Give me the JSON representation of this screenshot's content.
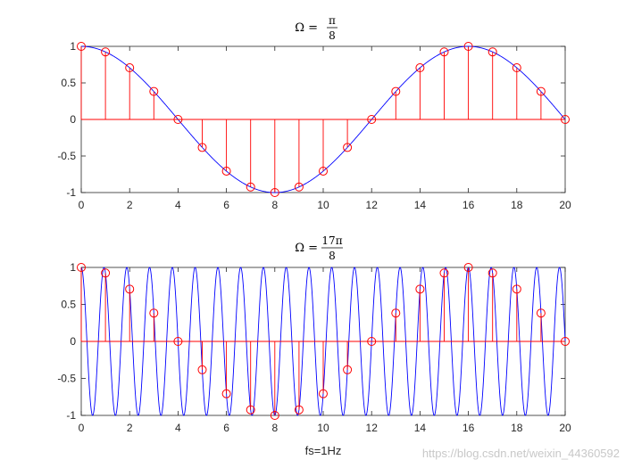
{
  "chart_data": [
    {
      "type": "line",
      "title": {
        "lhs": "Ω =",
        "num": "π",
        "den": "8"
      },
      "omega_numerator": 1,
      "omega_denominator": 8,
      "xlim": [
        0,
        20
      ],
      "ylim": [
        -1,
        1
      ],
      "xticks": [
        "0",
        "2",
        "4",
        "6",
        "8",
        "10",
        "12",
        "14",
        "16",
        "18",
        "20"
      ],
      "yticks": [
        "-1",
        "-0.5",
        "0",
        "0.5",
        "1"
      ],
      "xtick_values": [
        0,
        2,
        4,
        6,
        8,
        10,
        12,
        14,
        16,
        18,
        20
      ],
      "ytick_values": [
        -1,
        -0.5,
        0,
        0.5,
        1
      ],
      "series": [
        {
          "kind": "continuous",
          "color": "#0000ff",
          "expression": "cos(Ω t)"
        },
        {
          "kind": "stem",
          "color": "#ff0000",
          "marker": "circle",
          "n": [
            0,
            1,
            2,
            3,
            4,
            5,
            6,
            7,
            8,
            9,
            10,
            11,
            12,
            13,
            14,
            15,
            16,
            17,
            18,
            19,
            20
          ],
          "values": [
            1,
            0.924,
            0.707,
            0.383,
            0,
            -0.383,
            -0.707,
            -0.924,
            -1,
            -0.924,
            -0.707,
            -0.383,
            0,
            0.383,
            0.707,
            0.924,
            1,
            0.924,
            0.707,
            0.383,
            0
          ]
        }
      ],
      "xlabel": ""
    },
    {
      "type": "line",
      "title": {
        "lhs": "Ω =",
        "num": "17π",
        "den": "8"
      },
      "omega_numerator": 17,
      "omega_denominator": 8,
      "xlim": [
        0,
        20
      ],
      "ylim": [
        -1,
        1
      ],
      "xticks": [
        "0",
        "2",
        "4",
        "6",
        "8",
        "10",
        "12",
        "14",
        "16",
        "18",
        "20"
      ],
      "yticks": [
        "-1",
        "-0.5",
        "0",
        "0.5",
        "1"
      ],
      "xtick_values": [
        0,
        2,
        4,
        6,
        8,
        10,
        12,
        14,
        16,
        18,
        20
      ],
      "ytick_values": [
        -1,
        -0.5,
        0,
        0.5,
        1
      ],
      "series": [
        {
          "kind": "continuous",
          "color": "#0000ff",
          "expression": "cos(Ω t)"
        },
        {
          "kind": "stem",
          "color": "#ff0000",
          "marker": "circle",
          "n": [
            0,
            1,
            2,
            3,
            4,
            5,
            6,
            7,
            8,
            9,
            10,
            11,
            12,
            13,
            14,
            15,
            16,
            17,
            18,
            19,
            20
          ],
          "values": [
            1,
            0.924,
            0.707,
            0.383,
            0,
            -0.383,
            -0.707,
            -0.924,
            -1,
            -0.924,
            -0.707,
            -0.383,
            0,
            0.383,
            0.707,
            0.924,
            1,
            0.924,
            0.707,
            0.383,
            0
          ]
        }
      ],
      "xlabel": "fs=1Hz"
    }
  ],
  "watermark": "https://blog.csdn.net/weixin_44360592"
}
